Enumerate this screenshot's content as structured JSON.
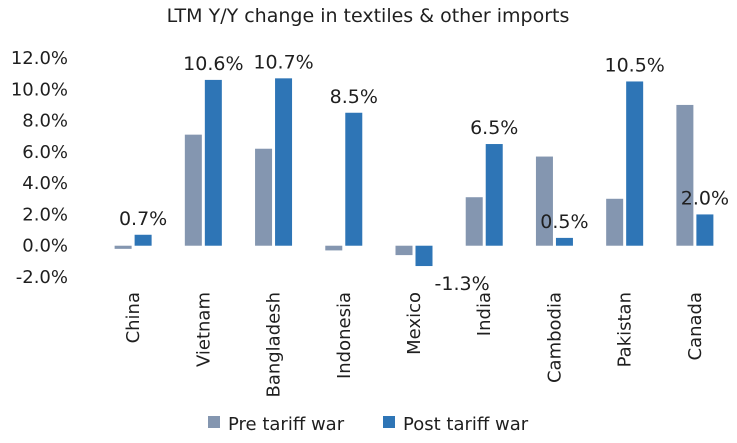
{
  "chart_data": {
    "type": "bar",
    "title": "LTM Y/Y change in textiles & other imports",
    "categories": [
      "China",
      "Vietnam",
      "Bangladesh",
      "Indonesia",
      "Mexico",
      "India",
      "Cambodia",
      "Pakistan",
      "Canada"
    ],
    "series": [
      {
        "name": "Pre tariff war",
        "color": "#8496b0",
        "values": [
          -0.2,
          7.1,
          6.2,
          -0.3,
          -0.6,
          3.1,
          5.7,
          3.0,
          9.0
        ]
      },
      {
        "name": "Post tariff war",
        "color": "#2e75b6",
        "values": [
          0.7,
          10.6,
          10.7,
          8.5,
          -1.3,
          6.5,
          0.5,
          10.5,
          2.0
        ],
        "data_labels": [
          "0.7%",
          "10.6%",
          "10.7%",
          "8.5%",
          "-1.3%",
          "6.5%",
          "0.5%",
          "10.5%",
          "2.0%"
        ]
      }
    ],
    "ylim": [
      -2,
      12
    ],
    "yticks": [
      -2,
      0,
      2,
      4,
      6,
      8,
      10,
      12
    ],
    "ytick_labels": [
      "-2.0%",
      "0.0%",
      "2.0%",
      "4.0%",
      "6.0%",
      "8.0%",
      "10.0%",
      "12.0%"
    ],
    "xlabel": "",
    "ylabel": "",
    "grid": false,
    "legend_position": "bottom"
  }
}
